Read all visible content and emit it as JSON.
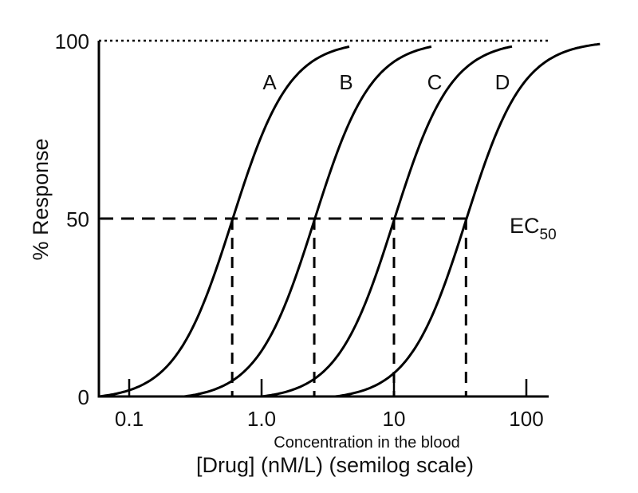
{
  "chart_data": {
    "type": "line",
    "title": "",
    "xlabel": "[Drug] (nM/L) (semilog scale)",
    "xlabel_sub": "Concentration in the blood",
    "ylabel": "% Response",
    "xscale": "log",
    "xlim": [
      0.059,
      140
    ],
    "ylim": [
      0,
      100
    ],
    "x_ticks": [
      0.1,
      1.0,
      10,
      100
    ],
    "x_tick_labels": [
      "0.1",
      "1.0",
      "10",
      "100"
    ],
    "y_ticks": [
      0,
      50,
      100
    ],
    "y_tick_labels": [
      "0",
      "50",
      "100"
    ],
    "grid": false,
    "legend": null,
    "reference_lines": [
      {
        "type": "horizontal",
        "y": 100,
        "style": "dotted"
      },
      {
        "type": "horizontal",
        "y": 50,
        "style": "dashed",
        "label": "EC50"
      }
    ],
    "annotation": {
      "text": "EC",
      "subscript": "50"
    },
    "series": [
      {
        "name": "A",
        "ec50": 0.6,
        "x_start": 0.059,
        "x_end": 1.8,
        "points": [
          [
            0.059,
            0
          ],
          [
            0.1,
            5
          ],
          [
            0.2,
            19
          ],
          [
            0.4,
            38
          ],
          [
            0.6,
            50
          ],
          [
            1.0,
            75
          ],
          [
            1.5,
            92
          ],
          [
            3.0,
            99
          ],
          [
            5.0,
            100
          ]
        ]
      },
      {
        "name": "B",
        "ec50": 2.5,
        "x_start": 0.26,
        "x_end": 7.5,
        "points": [
          [
            0.26,
            0
          ],
          [
            0.5,
            8
          ],
          [
            1.0,
            19
          ],
          [
            2.0,
            40
          ],
          [
            2.5,
            50
          ],
          [
            4.0,
            73
          ],
          [
            6.0,
            90
          ],
          [
            12.0,
            99
          ],
          [
            20.0,
            100
          ]
        ]
      },
      {
        "name": "C",
        "ec50": 10,
        "x_start": 1.0,
        "x_end": 30,
        "points": [
          [
            1.0,
            0
          ],
          [
            2.0,
            8
          ],
          [
            4.0,
            21
          ],
          [
            7.0,
            38
          ],
          [
            10,
            50
          ],
          [
            15,
            70
          ],
          [
            25,
            90
          ],
          [
            50,
            99
          ],
          [
            90,
            100
          ]
        ]
      },
      {
        "name": "D",
        "ec50": 35,
        "x_start": 3.6,
        "x_end": 140,
        "points": [
          [
            3.6,
            0
          ],
          [
            6.0,
            6
          ],
          [
            10,
            17
          ],
          [
            20,
            35
          ],
          [
            35,
            50
          ],
          [
            50,
            68
          ],
          [
            90,
            90
          ],
          [
            200,
            99
          ],
          [
            380,
            100
          ]
        ]
      }
    ]
  },
  "labels": {
    "y_axis_title": "% Response",
    "x_axis_sub": "Concentration in the blood",
    "x_axis_title": "[Drug] (nM/L) (semilog scale)",
    "ec_main": "EC",
    "ec_sub": "50"
  }
}
